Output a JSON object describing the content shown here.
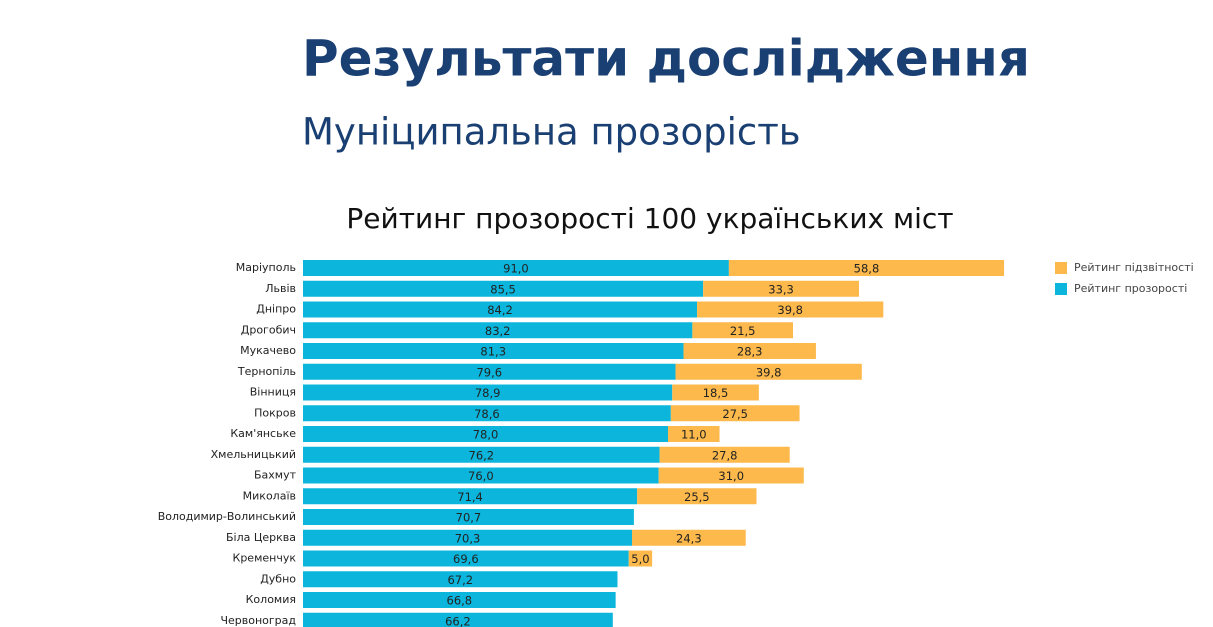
{
  "header": {
    "title": "Результати дослідження",
    "subtitle": "Муніципальна прозорість"
  },
  "chart_data": {
    "type": "stacked-barh",
    "title": "Рейтинг прозорості 100 українських міст",
    "categories": [
      "Маріуполь",
      "Львів",
      "Дніпро",
      "Дрогобич",
      "Мукачево",
      "Тернопіль",
      "Вінниця",
      "Покров",
      "Кам'янське",
      "Хмельницький",
      "Бахмут",
      "Миколаїв",
      "Володимир-Волинський",
      "Біла Церква",
      "Кременчук",
      "Дубно",
      "Коломия",
      "Червоноград"
    ],
    "series": [
      {
        "name": "Рейтинг прозорості",
        "color": "#0bb5dc",
        "values": [
          91.0,
          85.5,
          84.2,
          83.2,
          81.3,
          79.6,
          78.9,
          78.6,
          78.0,
          76.2,
          76.0,
          71.4,
          70.7,
          70.3,
          69.6,
          67.2,
          66.8,
          66.2
        ],
        "value_labels": [
          "91,0",
          "85,5",
          "84,2",
          "83,2",
          "81,3",
          "79,6",
          "78,9",
          "78,6",
          "78,0",
          "76,2",
          "76,0",
          "71,4",
          "70,7",
          "70,3",
          "69,6",
          "67,2",
          "66,8",
          "66,2"
        ]
      },
      {
        "name": "Рейтинг підзвітності",
        "color": "#fdb94b",
        "values": [
          58.8,
          33.3,
          39.8,
          21.5,
          28.3,
          39.8,
          18.5,
          27.5,
          11.0,
          27.8,
          31.0,
          25.5,
          null,
          24.3,
          5.0,
          null,
          null,
          null
        ],
        "value_labels": [
          "58,8",
          "33,3",
          "39,8",
          "21,5",
          "28,3",
          "39,8",
          "18,5",
          "27,5",
          "11,0",
          "27,8",
          "31,0",
          "25,5",
          null,
          "24,3",
          "5,0",
          null,
          null,
          null
        ]
      }
    ],
    "legend": "top-right"
  }
}
